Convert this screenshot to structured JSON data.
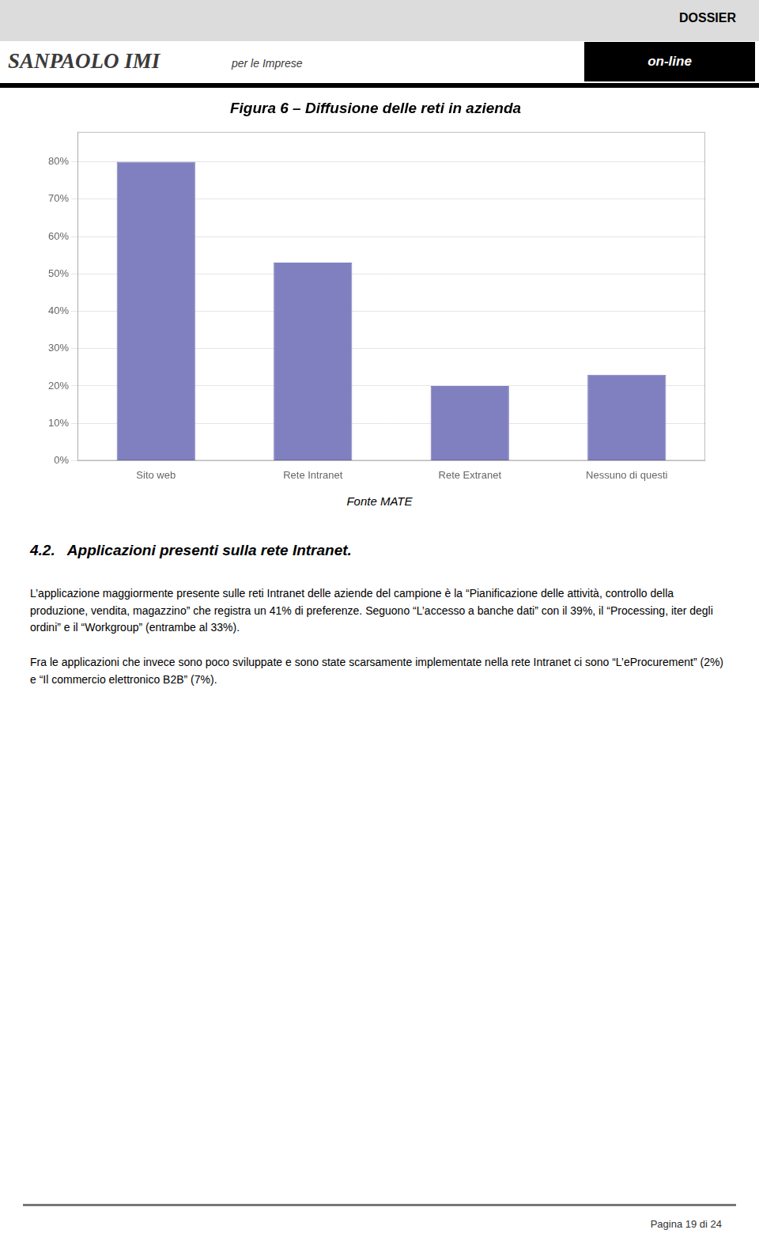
{
  "header": {
    "top_right": "DOSSIER",
    "tag": "on-line",
    "logo": "SANPAOLO IMI",
    "logo_subtitle": "per le Imprese"
  },
  "chart_data": {
    "type": "bar",
    "title": "Figura 6 – Diffusione delle reti in azienda",
    "categories": [
      "Sito web",
      "Rete Intranet",
      "Rete Extranet",
      "Nessuno di questi"
    ],
    "values": [
      0.8,
      0.53,
      0.2,
      0.23
    ],
    "color": "#8080C0",
    "ylim": [
      0,
      0.88
    ],
    "yticks": [
      {
        "value": 0.0,
        "label": "0%"
      },
      {
        "value": 0.1,
        "label": "10%"
      },
      {
        "value": 0.2,
        "label": "20%"
      },
      {
        "value": 0.3,
        "label": "30%"
      },
      {
        "value": 0.4,
        "label": "40%"
      },
      {
        "value": 0.5,
        "label": "50%"
      },
      {
        "value": 0.6,
        "label": "60%"
      },
      {
        "value": 0.7,
        "label": "70%"
      },
      {
        "value": 0.8,
        "label": "80%"
      }
    ],
    "grid": true,
    "annotations": [
      "Fonte MATE"
    ]
  },
  "section_heading": "4.2.   Applicazioni presenti sulla rete Intranet.",
  "paragraphs": [
    "L’applicazione maggiormente presente sulle reti Intranet delle aziende del campione è la “Pianificazione delle attività, controllo della produzione, vendita, magazzino” che registra un 41% di preferenze. Seguono “L’accesso a banche dati” con il 39%, il “Processing, iter degli ordini” e il “Workgroup” (entrambe al 33%).",
    "Fra le applicazioni che invece sono poco sviluppate e sono state scarsamente implementate nella rete Intranet ci sono “L’eProcurement” (2%) e “Il commercio elettronico B2B” (7%)."
  ],
  "footer": "Pagina 19 di 24"
}
